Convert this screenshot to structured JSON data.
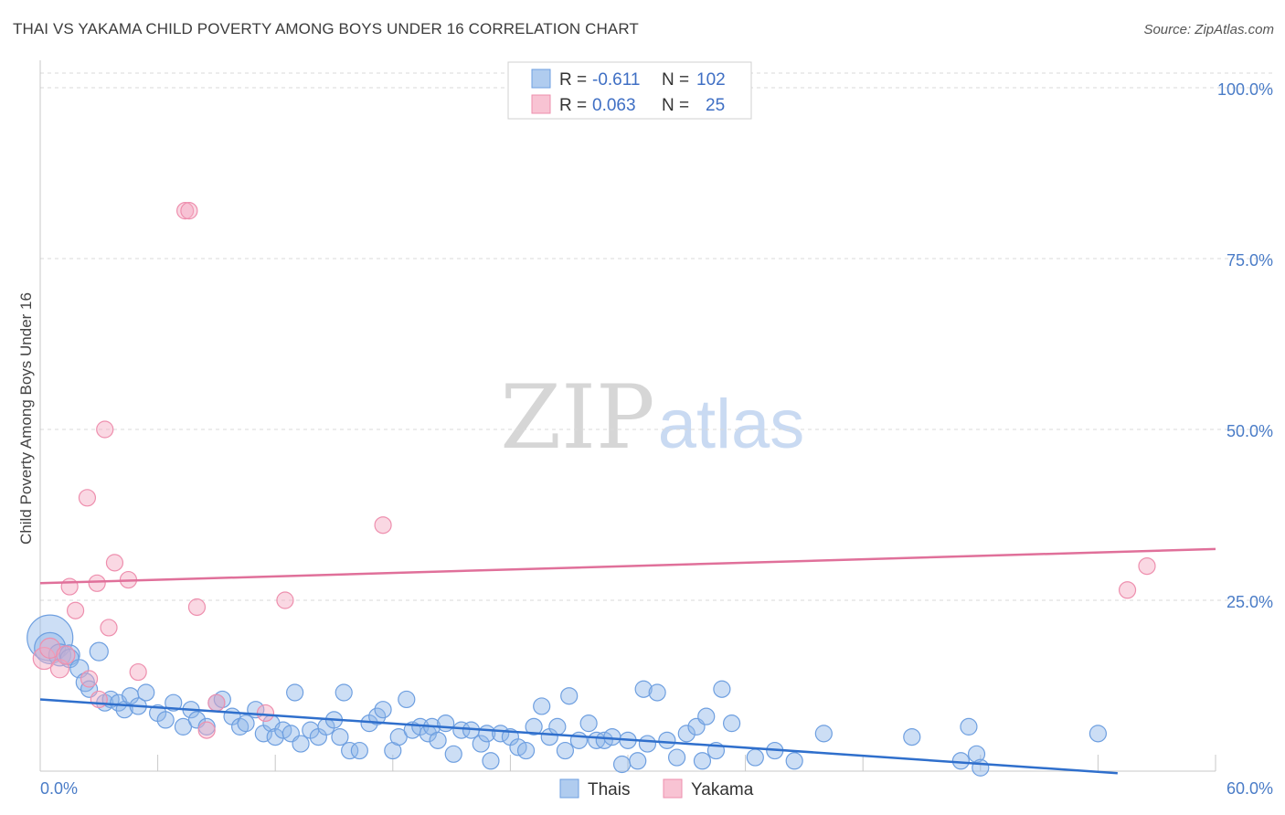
{
  "title": "THAI VS YAKAMA CHILD POVERTY AMONG BOYS UNDER 16 CORRELATION CHART",
  "source": "Source: ZipAtlas.com",
  "watermark": {
    "zip": "ZIP",
    "atlas": "atlas"
  },
  "colors": {
    "thais": "#8fb6e8",
    "thais_line": "#2f6fcc",
    "yakama": "#f5a9c0",
    "yakama_line": "#e0709a",
    "tick_label": "#4a7cc7",
    "grid": "#d9d9d9"
  },
  "legend": {
    "rows": [
      {
        "r_label": "R =",
        "r_value": "-0.611",
        "n_label": "N =",
        "n_value": "102"
      },
      {
        "r_label": "R =",
        "r_value": "0.063",
        "n_label": "N =",
        "n_value": "25"
      }
    ]
  },
  "chart_data": {
    "type": "scatter",
    "xlabel": "",
    "ylabel": "Child Poverty Among Boys Under 16",
    "xlim": [
      0,
      60
    ],
    "ylim": [
      0,
      100
    ],
    "x_tick_labels": [
      "0.0%",
      "60.0%"
    ],
    "y_tick_labels": [
      "25.0%",
      "50.0%",
      "75.0%",
      "100.0%"
    ],
    "y_ticks": [
      25,
      50,
      75,
      100
    ],
    "grid": "horizontal dashed",
    "legend_position": "top-center",
    "series": [
      {
        "name": "Thais",
        "trend": [
          [
            0,
            10.5
          ],
          [
            55,
            -0.3
          ]
        ],
        "points": [
          [
            0.5,
            19.5,
            40
          ],
          [
            0.5,
            18,
            24
          ],
          [
            1,
            17,
            14
          ],
          [
            1.5,
            17,
            12
          ],
          [
            1.5,
            16.5,
            10
          ],
          [
            2,
            15,
            10
          ],
          [
            2.3,
            13,
            10
          ],
          [
            2.5,
            12,
            8
          ],
          [
            3,
            17.5,
            10
          ],
          [
            3.3,
            10,
            8
          ],
          [
            3.6,
            10.5,
            8
          ],
          [
            4,
            10,
            8
          ],
          [
            4.3,
            9,
            8
          ],
          [
            4.6,
            11,
            8
          ],
          [
            5,
            9.5,
            8
          ],
          [
            5.4,
            11.5,
            8
          ],
          [
            6,
            8.5,
            8
          ],
          [
            6.4,
            7.5,
            8
          ],
          [
            6.8,
            10,
            8
          ],
          [
            7.3,
            6.5,
            8
          ],
          [
            7.7,
            9,
            8
          ],
          [
            8,
            7.5,
            8
          ],
          [
            8.5,
            6.5,
            8
          ],
          [
            9,
            10,
            8
          ],
          [
            9.3,
            10.5,
            8
          ],
          [
            9.8,
            8,
            8
          ],
          [
            10.2,
            6.5,
            8
          ],
          [
            10.5,
            7,
            8
          ],
          [
            11,
            9,
            8
          ],
          [
            11.4,
            5.5,
            8
          ],
          [
            11.8,
            7,
            8
          ],
          [
            12,
            5,
            8
          ],
          [
            12.4,
            6,
            8
          ],
          [
            12.8,
            5.5,
            8
          ],
          [
            13,
            11.5,
            8
          ],
          [
            13.3,
            4,
            8
          ],
          [
            13.8,
            6,
            8
          ],
          [
            14.2,
            5,
            8
          ],
          [
            14.6,
            6.5,
            8
          ],
          [
            15,
            7.5,
            8
          ],
          [
            15.3,
            5,
            8
          ],
          [
            15.5,
            11.5,
            8
          ],
          [
            15.8,
            3,
            8
          ],
          [
            16.3,
            3,
            8
          ],
          [
            16.8,
            7,
            8
          ],
          [
            17.2,
            8,
            8
          ],
          [
            17.5,
            9,
            8
          ],
          [
            18,
            3,
            8
          ],
          [
            18.3,
            5,
            8
          ],
          [
            18.7,
            10.5,
            8
          ],
          [
            19,
            6,
            8
          ],
          [
            19.4,
            6.5,
            8
          ],
          [
            19.8,
            5.5,
            8
          ],
          [
            20,
            6.5,
            8
          ],
          [
            20.3,
            4.5,
            8
          ],
          [
            20.7,
            7,
            8
          ],
          [
            21.1,
            2.5,
            8
          ],
          [
            21.5,
            6,
            8
          ],
          [
            22,
            6,
            8
          ],
          [
            22.5,
            4,
            8
          ],
          [
            22.8,
            5.5,
            8
          ],
          [
            23,
            1.5,
            8
          ],
          [
            23.5,
            5.5,
            8
          ],
          [
            24,
            5,
            8
          ],
          [
            24.4,
            3.5,
            8
          ],
          [
            24.8,
            3,
            8
          ],
          [
            25.2,
            6.5,
            8
          ],
          [
            25.6,
            9.5,
            8
          ],
          [
            26,
            5,
            8
          ],
          [
            26.4,
            6.5,
            8
          ],
          [
            26.8,
            3,
            8
          ],
          [
            27,
            11,
            8
          ],
          [
            27.5,
            4.5,
            8
          ],
          [
            28,
            7,
            8
          ],
          [
            28.4,
            4.5,
            8
          ],
          [
            28.8,
            4.5,
            8
          ],
          [
            29.2,
            5,
            8
          ],
          [
            29.7,
            1,
            8
          ],
          [
            30,
            4.5,
            8
          ],
          [
            30.5,
            1.5,
            8
          ],
          [
            30.8,
            12,
            8
          ],
          [
            31,
            4,
            8
          ],
          [
            31.5,
            11.5,
            8
          ],
          [
            32,
            4.5,
            8
          ],
          [
            32.5,
            2,
            8
          ],
          [
            33,
            5.5,
            8
          ],
          [
            33.5,
            6.5,
            8
          ],
          [
            33.8,
            1.5,
            8
          ],
          [
            34,
            8,
            8
          ],
          [
            34.5,
            3,
            8
          ],
          [
            34.8,
            12,
            8
          ],
          [
            35.3,
            7,
            8
          ],
          [
            36.5,
            2,
            8
          ],
          [
            37.5,
            3,
            8
          ],
          [
            38.5,
            1.5,
            8
          ],
          [
            40,
            5.5,
            8
          ],
          [
            44.5,
            5,
            8
          ],
          [
            47,
            1.5,
            8
          ],
          [
            47.4,
            6.5,
            8
          ],
          [
            47.8,
            2.5,
            8
          ],
          [
            48,
            0.5,
            8
          ],
          [
            54,
            5.5,
            8
          ]
        ]
      },
      {
        "name": "Yakama",
        "trend": [
          [
            0,
            27.5
          ],
          [
            60,
            32.5
          ]
        ],
        "points": [
          [
            0.2,
            16.5,
            14
          ],
          [
            0.5,
            18,
            12
          ],
          [
            1,
            15,
            10
          ],
          [
            1.3,
            17,
            10
          ],
          [
            1.8,
            23.5,
            8
          ],
          [
            2.4,
            40,
            8
          ],
          [
            2.9,
            27.5,
            8
          ],
          [
            3.3,
            50,
            8
          ],
          [
            3.5,
            21,
            8
          ],
          [
            3.8,
            30.5,
            8
          ],
          [
            4.5,
            28,
            8
          ],
          [
            5,
            14.5,
            8
          ],
          [
            7.4,
            82,
            8
          ],
          [
            8,
            24,
            8
          ],
          [
            8.5,
            6,
            8
          ],
          [
            9,
            10,
            8
          ],
          [
            11.5,
            8.5,
            8
          ],
          [
            12.5,
            25,
            8
          ],
          [
            17.5,
            36,
            8
          ],
          [
            1.5,
            27,
            8
          ],
          [
            3,
            10.5,
            8
          ],
          [
            2.5,
            13.5,
            8
          ],
          [
            7.6,
            82,
            8
          ],
          [
            55.5,
            26.5,
            8
          ],
          [
            56.5,
            30,
            8
          ]
        ]
      }
    ]
  },
  "bottom_legend": [
    {
      "label": "Thais"
    },
    {
      "label": "Yakama"
    }
  ]
}
